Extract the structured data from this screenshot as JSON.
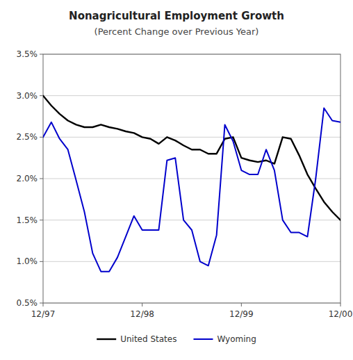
{
  "chart_data": {
    "type": "line",
    "title": "Nonagricultural Employment Growth",
    "subtitle": "(Percent Change over Previous Year)",
    "x": [
      0,
      1,
      2,
      3,
      4,
      5,
      6,
      7,
      8,
      9,
      10,
      11,
      12,
      13,
      14,
      15,
      16,
      17,
      18,
      19,
      20,
      21,
      22,
      23,
      24,
      25,
      26,
      27,
      28,
      29,
      30,
      31,
      32,
      33,
      34,
      35,
      36
    ],
    "series": [
      {
        "name": "United States",
        "color": "#000000",
        "values": [
          3.0,
          2.88,
          2.78,
          2.7,
          2.65,
          2.62,
          2.62,
          2.65,
          2.62,
          2.6,
          2.57,
          2.55,
          2.5,
          2.48,
          2.42,
          2.5,
          2.46,
          2.4,
          2.35,
          2.35,
          2.3,
          2.3,
          2.48,
          2.5,
          2.25,
          2.22,
          2.2,
          2.22,
          2.18,
          2.5,
          2.48,
          2.28,
          2.05,
          1.88,
          1.72,
          1.6,
          1.5
        ]
      },
      {
        "name": "Wyoming",
        "color": "#0000cc",
        "values": [
          2.5,
          2.68,
          2.48,
          2.35,
          1.98,
          1.6,
          1.1,
          0.88,
          0.88,
          1.05,
          1.3,
          1.55,
          1.38,
          1.38,
          1.38,
          2.22,
          2.25,
          1.5,
          1.38,
          1.0,
          0.95,
          1.32,
          2.65,
          2.45,
          2.1,
          2.05,
          2.05,
          2.35,
          2.1,
          1.5,
          1.35,
          1.35,
          1.3,
          2.0,
          2.85,
          2.7,
          2.68
        ]
      }
    ],
    "xlim": [
      0,
      36
    ],
    "xticks": [
      {
        "value": 0,
        "label": "12/97"
      },
      {
        "value": 12,
        "label": "12/98"
      },
      {
        "value": 24,
        "label": "12/99"
      },
      {
        "value": 36,
        "label": "12/00"
      }
    ],
    "ylim": [
      0.5,
      3.5
    ],
    "yticks": [
      {
        "value": 0.5,
        "label": "0.5%"
      },
      {
        "value": 1.0,
        "label": "1.0%"
      },
      {
        "value": 1.5,
        "label": "1.5%"
      },
      {
        "value": 2.0,
        "label": "2.0%"
      },
      {
        "value": 2.5,
        "label": "2.5%"
      },
      {
        "value": 3.0,
        "label": "3.0%"
      },
      {
        "value": 3.5,
        "label": "3.5%"
      }
    ],
    "grid": true,
    "legend": "bottom"
  }
}
